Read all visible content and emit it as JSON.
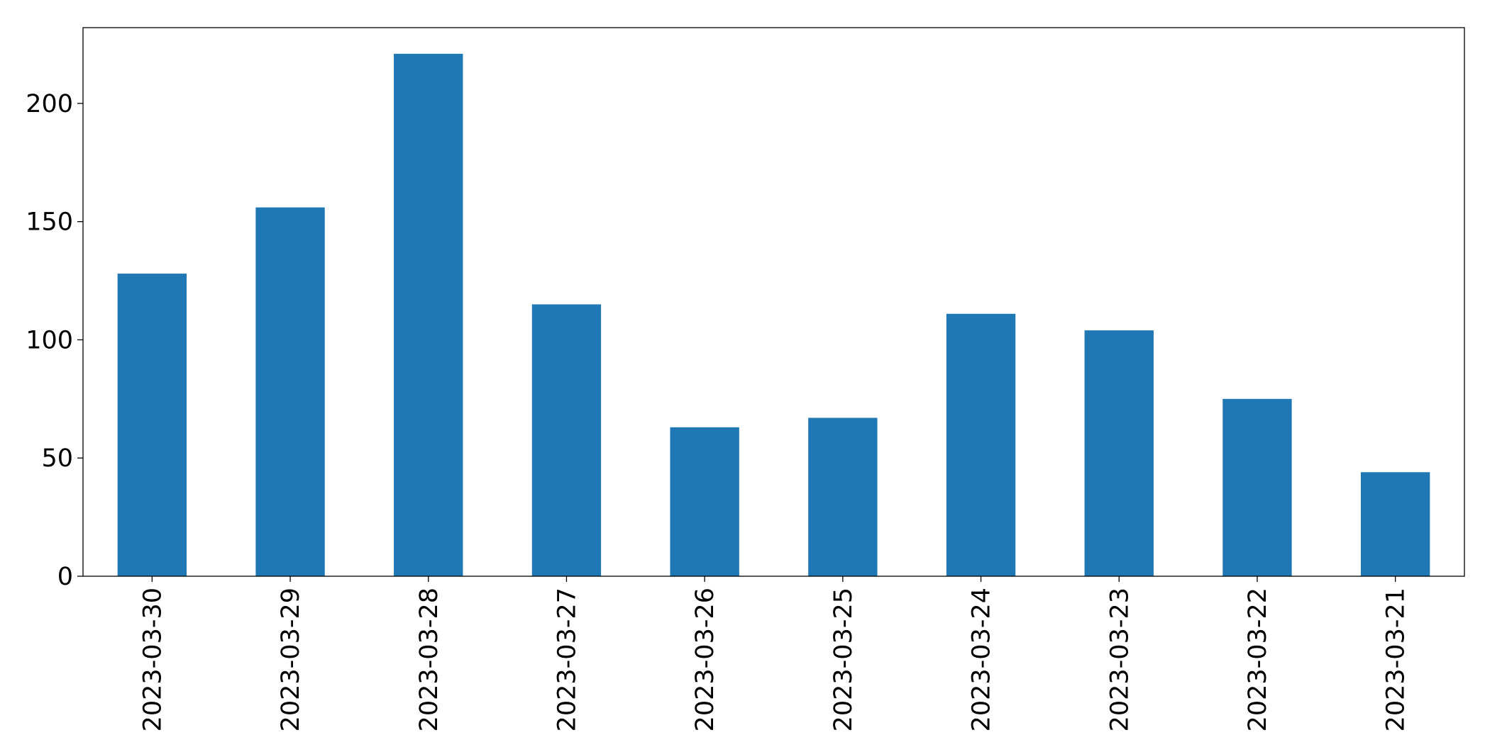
{
  "chart_data": {
    "type": "bar",
    "categories": [
      "2023-03-30",
      "2023-03-29",
      "2023-03-28",
      "2023-03-27",
      "2023-03-26",
      "2023-03-25",
      "2023-03-24",
      "2023-03-23",
      "2023-03-22",
      "2023-03-21"
    ],
    "values": [
      128,
      156,
      221,
      115,
      63,
      67,
      111,
      104,
      75,
      44
    ],
    "color": "#1f77b4",
    "ylim": [
      0,
      232.05
    ],
    "yticks": [
      0,
      50,
      100,
      150,
      200
    ],
    "grid": false
  }
}
